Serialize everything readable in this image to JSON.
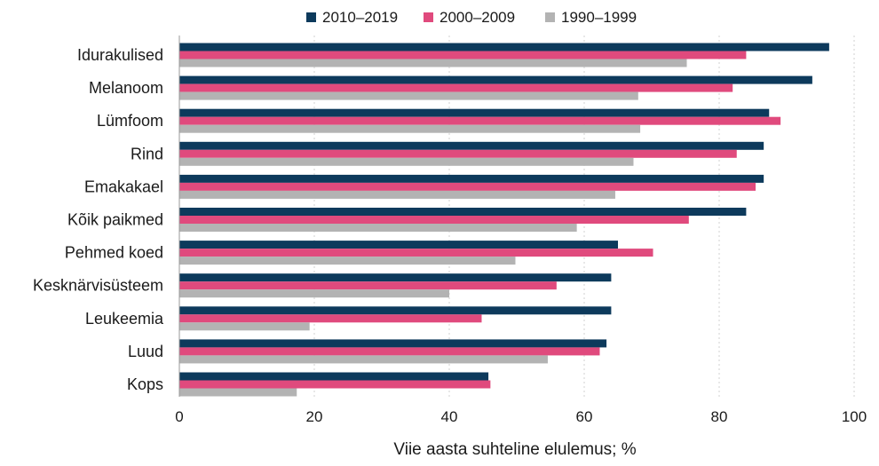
{
  "chart_data": {
    "type": "bar",
    "orientation": "horizontal",
    "categories": [
      "Idurakulised",
      "Melanoom",
      "Lümfoom",
      "Rind",
      "Emakakael",
      "Kõik paikmed",
      "Pehmed koed",
      "Kesknärvisüsteem",
      "Leukeemia",
      "Luud",
      "Kops"
    ],
    "series": [
      {
        "name": "2010–2019",
        "color": "#0d3a5c",
        "values": [
          96.3,
          93.8,
          87.4,
          86.6,
          86.6,
          84.0,
          65.0,
          64.0,
          64.0,
          63.3,
          45.8
        ]
      },
      {
        "name": "2000–2009",
        "color": "#e04a7d",
        "values": [
          84.0,
          82.0,
          89.1,
          82.6,
          85.4,
          75.5,
          70.2,
          55.9,
          44.8,
          62.3,
          46.1
        ]
      },
      {
        "name": "1990–1999",
        "color": "#b3b3b3",
        "values": [
          75.2,
          68.0,
          68.3,
          67.3,
          64.6,
          58.9,
          49.8,
          40.0,
          19.3,
          54.6,
          17.4
        ]
      }
    ],
    "xlabel": "Viie aasta suhteline elulemus; %",
    "xlim": [
      0,
      100
    ],
    "xticks": [
      0,
      20,
      40,
      60,
      80,
      100
    ],
    "grid": "vertical",
    "legend": "top-center"
  }
}
